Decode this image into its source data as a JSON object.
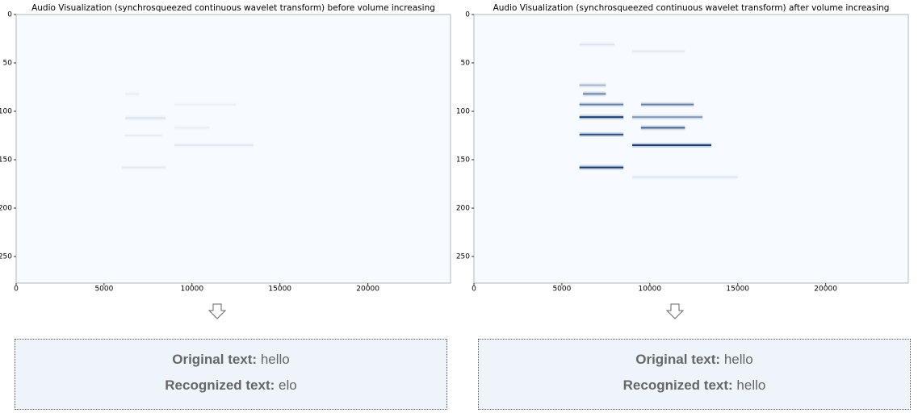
{
  "chart_data": [
    {
      "type": "heatmap",
      "title": "Audio Visualization (synchrosqueezed continuous wavelet transform) before volume increasing",
      "xlim": [
        0,
        24700
      ],
      "ylim": [
        277.5,
        0
      ],
      "xticks": [
        0,
        5000,
        10000,
        15000,
        20000
      ],
      "yticks": [
        0,
        50,
        100,
        150,
        200,
        250
      ],
      "colormap": [
        "#f7fbff",
        "#08306b"
      ],
      "streaks": [
        {
          "x": [
            6200,
            7000
          ],
          "y": 82,
          "value": 0.06
        },
        {
          "x": [
            9000,
            12500
          ],
          "y": 93,
          "value": 0.05
        },
        {
          "x": [
            6200,
            8500
          ],
          "y": 107,
          "value": 0.12
        },
        {
          "x": [
            9000,
            11000
          ],
          "y": 117,
          "value": 0.06
        },
        {
          "x": [
            6200,
            8300
          ],
          "y": 125,
          "value": 0.07
        },
        {
          "x": [
            9000,
            13500
          ],
          "y": 135,
          "value": 0.1
        },
        {
          "x": [
            6000,
            8500
          ],
          "y": 158,
          "value": 0.08
        }
      ]
    },
    {
      "type": "heatmap",
      "title": "Audio Visualization (synchrosqueezed continuous wavelet transform) after volume increasing",
      "xlim": [
        0,
        24700
      ],
      "ylim": [
        277.5,
        0
      ],
      "xticks": [
        0,
        5000,
        10000,
        15000,
        20000
      ],
      "yticks": [
        0,
        50,
        100,
        150,
        200,
        250
      ],
      "colormap": [
        "#f7fbff",
        "#08306b"
      ],
      "streaks": [
        {
          "x": [
            6000,
            8000
          ],
          "y": 31,
          "value": 0.12
        },
        {
          "x": [
            9000,
            12000
          ],
          "y": 38,
          "value": 0.08
        },
        {
          "x": [
            6000,
            7500
          ],
          "y": 73,
          "value": 0.35
        },
        {
          "x": [
            6200,
            7500
          ],
          "y": 82,
          "value": 0.6
        },
        {
          "x": [
            6000,
            8500
          ],
          "y": 93,
          "value": 0.6
        },
        {
          "x": [
            9500,
            12500
          ],
          "y": 93,
          "value": 0.6
        },
        {
          "x": [
            6000,
            8500
          ],
          "y": 106,
          "value": 0.95
        },
        {
          "x": [
            9000,
            13000
          ],
          "y": 106,
          "value": 0.5
        },
        {
          "x": [
            9500,
            12000
          ],
          "y": 117,
          "value": 0.75
        },
        {
          "x": [
            6000,
            8500
          ],
          "y": 124,
          "value": 0.85
        },
        {
          "x": [
            9000,
            13500
          ],
          "y": 135,
          "value": 0.95
        },
        {
          "x": [
            6000,
            8500
          ],
          "y": 158,
          "value": 0.95
        },
        {
          "x": [
            9000,
            15000
          ],
          "y": 168,
          "value": 0.1
        }
      ]
    }
  ],
  "captions": [
    {
      "original_label": "Original text:",
      "original": "hello",
      "recognized_label": "Recognized text:",
      "recognized": "elo"
    },
    {
      "original_label": "Original text:",
      "original": "hello",
      "recognized_label": "Recognized text:",
      "recognized": "hello"
    }
  ]
}
